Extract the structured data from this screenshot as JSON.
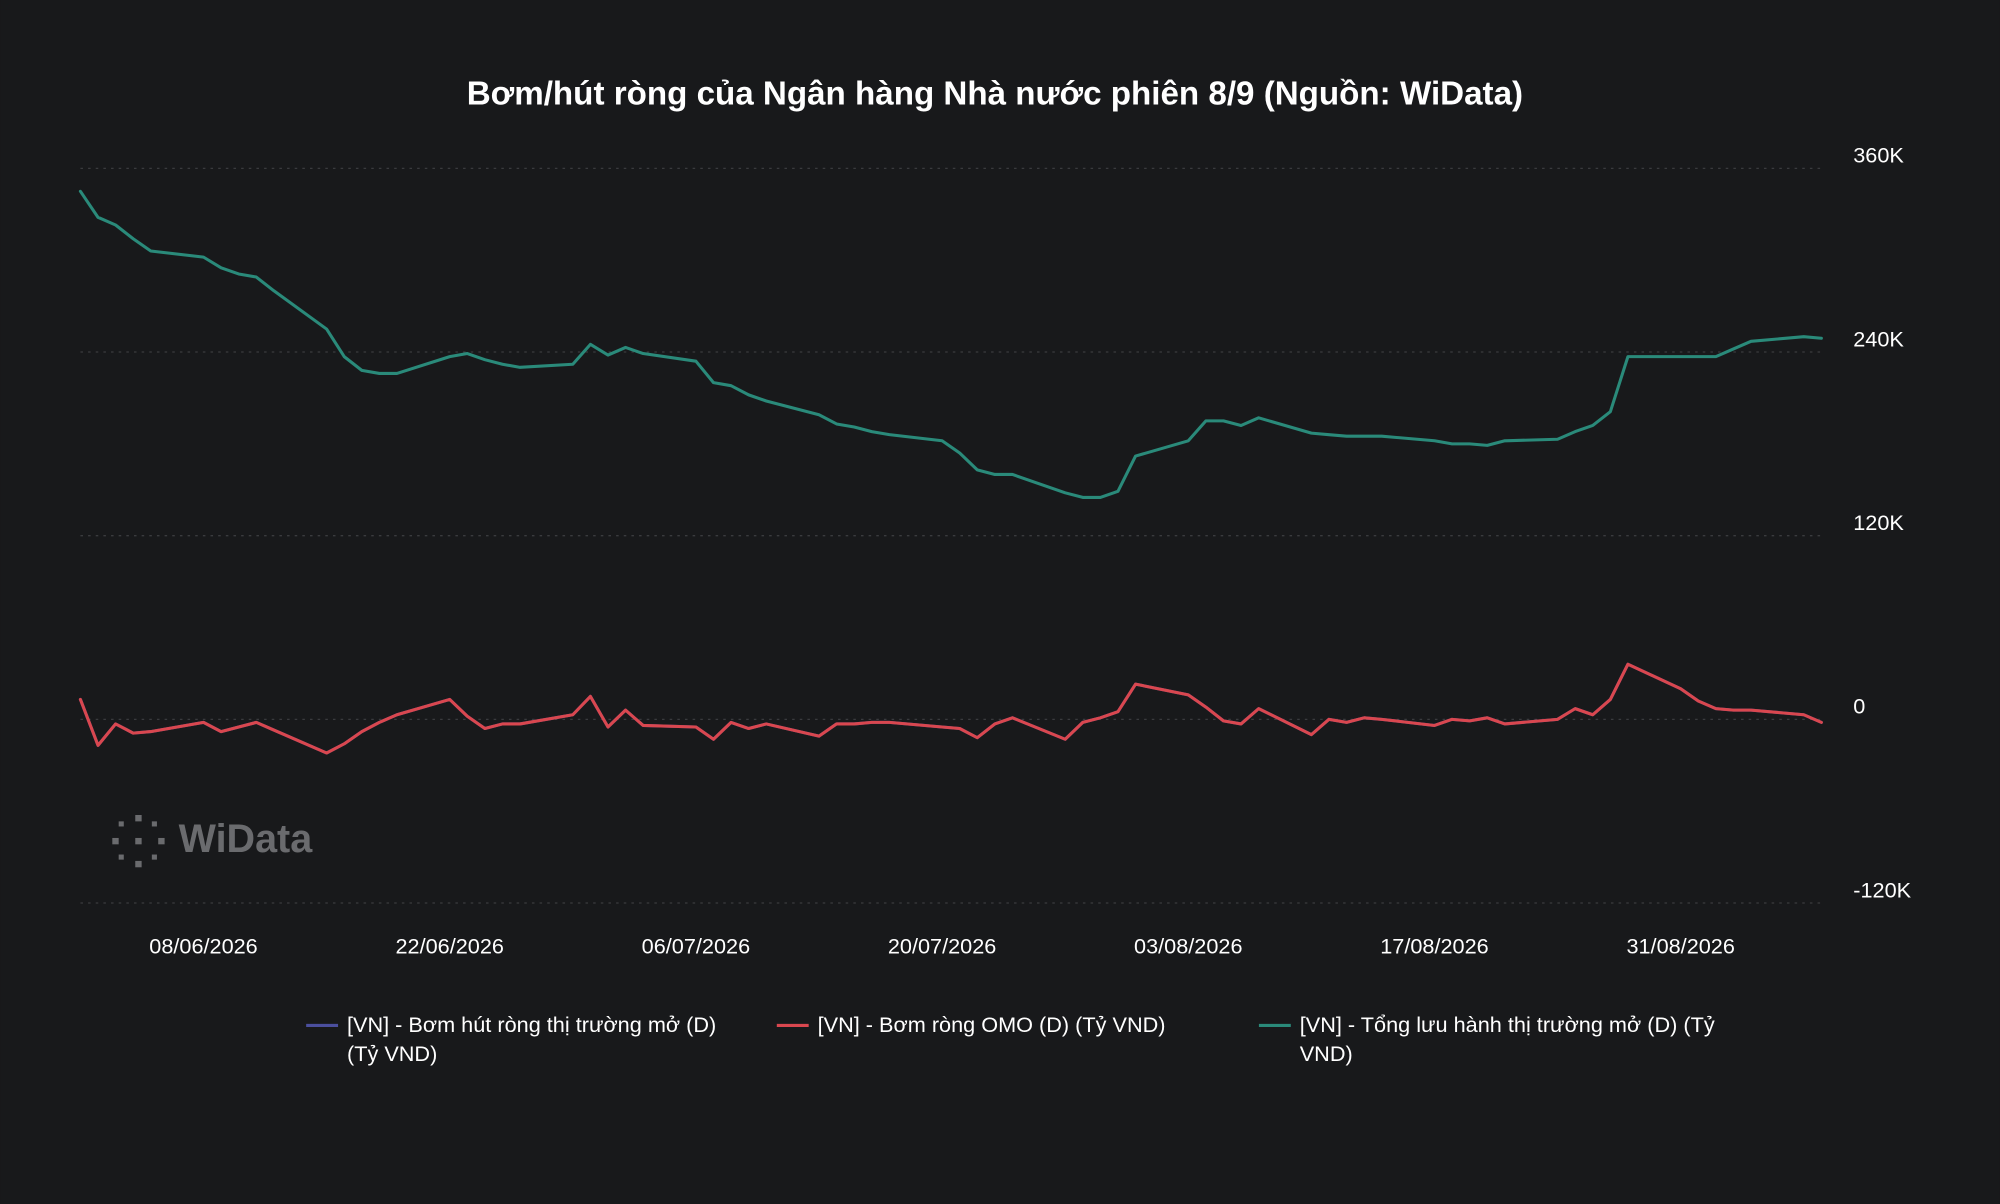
{
  "chart_data": {
    "type": "line",
    "title": "Bơm/hút ròng của Ngân hàng Nhà nước phiên 8/9 (Nguồn: WiData)",
    "watermark": "WiData",
    "x": [
      "2026-06-01",
      "2026-06-02",
      "2026-06-03",
      "2026-06-04",
      "2026-06-05",
      "2026-06-08",
      "2026-06-09",
      "2026-06-10",
      "2026-06-11",
      "2026-06-12",
      "2026-06-15",
      "2026-06-16",
      "2026-06-17",
      "2026-06-18",
      "2026-06-19",
      "2026-06-22",
      "2026-06-23",
      "2026-06-24",
      "2026-06-25",
      "2026-06-26",
      "2026-06-29",
      "2026-06-30",
      "2026-07-01",
      "2026-07-02",
      "2026-07-03",
      "2026-07-06",
      "2026-07-07",
      "2026-07-08",
      "2026-07-09",
      "2026-07-10",
      "2026-07-13",
      "2026-07-14",
      "2026-07-15",
      "2026-07-16",
      "2026-07-17",
      "2026-07-20",
      "2026-07-21",
      "2026-07-22",
      "2026-07-23",
      "2026-07-24",
      "2026-07-27",
      "2026-07-28",
      "2026-07-29",
      "2026-07-30",
      "2026-07-31",
      "2026-08-03",
      "2026-08-04",
      "2026-08-05",
      "2026-08-06",
      "2026-08-07",
      "2026-08-10",
      "2026-08-11",
      "2026-08-12",
      "2026-08-13",
      "2026-08-14",
      "2026-08-17",
      "2026-08-18",
      "2026-08-19",
      "2026-08-20",
      "2026-08-21",
      "2026-08-24",
      "2026-08-25",
      "2026-08-26",
      "2026-08-27",
      "2026-08-28",
      "2026-08-31",
      "2026-09-01",
      "2026-09-02",
      "2026-09-03",
      "2026-09-04",
      "2026-09-07",
      "2026-09-08"
    ],
    "xlim": [
      "2026-06-01",
      "2026-09-08"
    ],
    "xticks": [
      {
        "value": "2026-06-08",
        "label": "08/06/2026"
      },
      {
        "value": "2026-06-22",
        "label": "22/06/2026"
      },
      {
        "value": "2026-07-06",
        "label": "06/07/2026"
      },
      {
        "value": "2026-07-20",
        "label": "20/07/2026"
      },
      {
        "value": "2026-08-03",
        "label": "03/08/2026"
      },
      {
        "value": "2026-08-17",
        "label": "17/08/2026"
      },
      {
        "value": "2026-08-31",
        "label": "31/08/2026"
      }
    ],
    "ylim": [
      -120000,
      360000
    ],
    "yticks": [
      {
        "value": 360000,
        "label": "360K"
      },
      {
        "value": 240000,
        "label": "240K"
      },
      {
        "value": 120000,
        "label": "120K"
      },
      0,
      {
        "value": -120000,
        "label": "-120K"
      }
    ],
    "grid": true,
    "series": [
      {
        "name": "[VN] - Bơm hút ròng thị trường mở (D) (Tỷ VND)",
        "color": "#4b4f9e",
        "values": [
          13000,
          -17000,
          -3000,
          -9000,
          -8000,
          -2000,
          -8000,
          -5000,
          -2000,
          -7000,
          -22000,
          -16000,
          -8000,
          -2000,
          3000,
          13000,
          2000,
          -6000,
          -3000,
          -3000,
          3000,
          15000,
          -5000,
          6000,
          -4000,
          -5000,
          -13000,
          -2000,
          -6000,
          -3000,
          -11000,
          -3000,
          -3000,
          -2000,
          -2000,
          -5000,
          -6000,
          -12000,
          -3000,
          1000,
          -13000,
          -2000,
          1000,
          5000,
          23000,
          16000,
          8000,
          -1000,
          -3000,
          7000,
          -10000,
          0,
          -2000,
          1000,
          0,
          -4000,
          0,
          -1000,
          1000,
          -3000,
          0,
          7000,
          3000,
          13000,
          36000,
          20000,
          12000,
          7000,
          6000,
          6000,
          3000,
          -2000
        ]
      },
      {
        "name": "[VN] - Bơm ròng OMO (D) (Tỷ VND)",
        "color": "#d9474f",
        "values": [
          13000,
          -17000,
          -3000,
          -9000,
          -8000,
          -2000,
          -8000,
          -5000,
          -2000,
          -7000,
          -22000,
          -16000,
          -8000,
          -2000,
          3000,
          13000,
          2000,
          -6000,
          -3000,
          -3000,
          3000,
          15000,
          -5000,
          6000,
          -4000,
          -5000,
          -13000,
          -2000,
          -6000,
          -3000,
          -11000,
          -3000,
          -3000,
          -2000,
          -2000,
          -5000,
          -6000,
          -12000,
          -3000,
          1000,
          -13000,
          -2000,
          1000,
          5000,
          23000,
          16000,
          8000,
          -1000,
          -3000,
          7000,
          -10000,
          0,
          -2000,
          1000,
          0,
          -4000,
          0,
          -1000,
          1000,
          -3000,
          0,
          7000,
          3000,
          13000,
          36000,
          20000,
          12000,
          7000,
          6000,
          6000,
          3000,
          -2000
        ]
      },
      {
        "name": "[VN] - Tổng lưu hành thị trường mở (D) (Tỷ VND)",
        "color": "#2a8a7a",
        "values": [
          345000,
          328000,
          323000,
          314000,
          306000,
          302000,
          295000,
          291000,
          289000,
          280000,
          255000,
          237000,
          228000,
          226000,
          226000,
          237000,
          239000,
          235000,
          232000,
          230000,
          232000,
          245000,
          238000,
          243000,
          239000,
          234000,
          220000,
          218000,
          212000,
          208000,
          199000,
          193000,
          191000,
          188000,
          186000,
          182000,
          174000,
          163000,
          160000,
          160000,
          148000,
          145000,
          145000,
          149000,
          172000,
          182000,
          195000,
          195000,
          192000,
          197000,
          187000,
          186000,
          185000,
          185000,
          185000,
          182000,
          180000,
          180000,
          179000,
          182000,
          183000,
          188000,
          192000,
          201000,
          237000,
          237000,
          237000,
          237000,
          242000,
          247000,
          250000,
          249000
        ]
      }
    ]
  }
}
